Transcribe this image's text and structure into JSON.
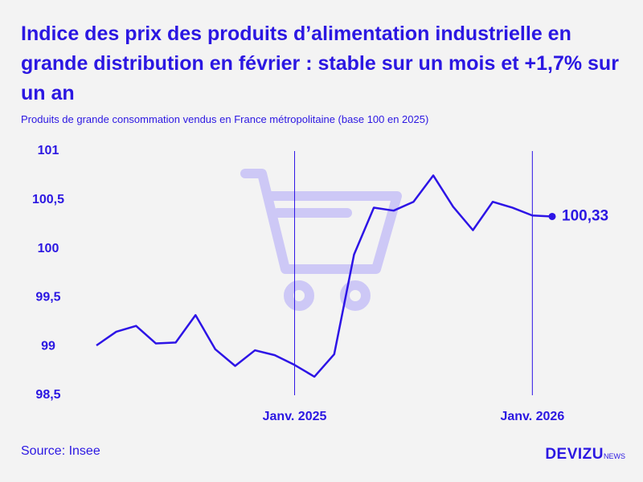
{
  "title": "Indice des prix des produits d’alimentation industrielle en grande distribution en février : stable sur un mois et +1,7% sur un an",
  "subtitle": "Produits de grande consommation vendus en France métropolitaine (base 100 en 2025)",
  "source": "Source: Insee",
  "logo": {
    "brand": "DEVIZU",
    "suffix": "NEWS"
  },
  "chart_data": {
    "type": "line",
    "categories": [
      null,
      null,
      null,
      null,
      null,
      null,
      null,
      null,
      null,
      null,
      "Janv. 2025",
      null,
      null,
      null,
      null,
      null,
      null,
      null,
      null,
      null,
      null,
      null,
      "Janv. 2026",
      null
    ],
    "series": [
      {
        "name": null,
        "color": "#2d14e6",
        "values": [
          99.01,
          99.15,
          99.21,
          99.03,
          99.04,
          99.32,
          98.97,
          98.8,
          98.96,
          98.91,
          98.81,
          98.69,
          98.92,
          99.94,
          100.42,
          100.39,
          100.48,
          100.75,
          100.43,
          100.19,
          100.48,
          100.42,
          100.34,
          100.33
        ],
        "value_labels": [
          null,
          null,
          null,
          null,
          null,
          null,
          null,
          null,
          null,
          null,
          null,
          null,
          null,
          null,
          null,
          null,
          null,
          null,
          null,
          null,
          null,
          null,
          null,
          "100,33"
        ]
      }
    ],
    "ylim": [
      98.5,
      101
    ],
    "yticks": [
      {
        "value": 98.5,
        "label": "98,5"
      },
      99,
      {
        "value": 99.5,
        "label": "99,5"
      },
      100,
      {
        "value": 100.5,
        "label": "100,5"
      },
      101
    ]
  }
}
